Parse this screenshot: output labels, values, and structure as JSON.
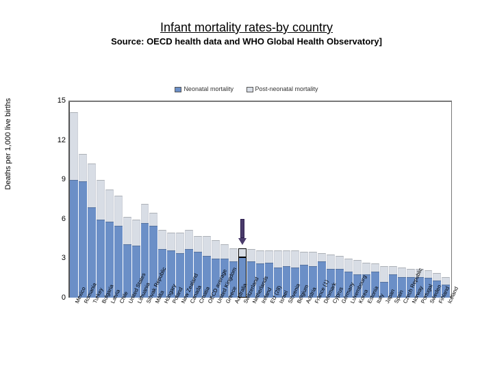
{
  "title": "Infant mortality rates-by country",
  "subtitle": "Source: OECD health data and WHO Global Health Observatory]",
  "chart": {
    "type": "stacked-bar",
    "ylabel": "Deaths per 1,000 live births",
    "ylim": [
      0,
      15
    ],
    "yticks": [
      0,
      3,
      6,
      9,
      12,
      15
    ],
    "colors": {
      "neonatal": "#6b8fc7",
      "postneonatal": "#d8dde5",
      "background": "#ffffff",
      "axis": "#555555",
      "frame": "#777777",
      "arrow": "#4a3b6b"
    },
    "legend": [
      {
        "label": "Neonatal mortality",
        "color": "#6b8fc7"
      },
      {
        "label": "Post-neonatal mortality",
        "color": "#d8dde5"
      }
    ],
    "highlighted_index": 19,
    "arrow_target_index": 19,
    "fontsize": {
      "title": 18,
      "subtitle": 13,
      "axis": 11,
      "ticks": 11,
      "xlabels": 8,
      "legend": 9
    },
    "countries": [
      {
        "name": "Mexico",
        "neonatal": 9.0,
        "postneonatal": 5.2
      },
      {
        "name": "Romania",
        "neonatal": 8.9,
        "postneonatal": 2.1
      },
      {
        "name": "Turkey",
        "neonatal": 6.9,
        "postneonatal": 3.4
      },
      {
        "name": "Bulgaria",
        "neonatal": 6.0,
        "postneonatal": 3.0
      },
      {
        "name": "Latvia",
        "neonatal": 5.8,
        "postneonatal": 2.5
      },
      {
        "name": "Chile",
        "neonatal": 5.5,
        "postneonatal": 2.3
      },
      {
        "name": "United States",
        "neonatal": 4.1,
        "postneonatal": 2.1
      },
      {
        "name": "Lithuania",
        "neonatal": 4.0,
        "postneonatal": 2.0
      },
      {
        "name": "Slovak Republic",
        "neonatal": 5.7,
        "postneonatal": 1.5
      },
      {
        "name": "Malta",
        "neonatal": 5.5,
        "postneonatal": 1.0
      },
      {
        "name": "Hungary",
        "neonatal": 3.7,
        "postneonatal": 1.5
      },
      {
        "name": "Poland",
        "neonatal": 3.6,
        "postneonatal": 1.4
      },
      {
        "name": "New Zealand",
        "neonatal": 3.4,
        "postneonatal": 1.6
      },
      {
        "name": "Canada",
        "neonatal": 3.7,
        "postneonatal": 1.5
      },
      {
        "name": "Croatia",
        "neonatal": 3.5,
        "postneonatal": 1.2
      },
      {
        "name": "OECD average",
        "neonatal": 3.2,
        "postneonatal": 1.5
      },
      {
        "name": "United Kingdom",
        "neonatal": 3.0,
        "postneonatal": 1.4
      },
      {
        "name": "Greece",
        "neonatal": 3.0,
        "postneonatal": 1.1
      },
      {
        "name": "Australia",
        "neonatal": 2.8,
        "postneonatal": 1.0
      },
      {
        "name": "Switzerland",
        "neonatal": 3.1,
        "postneonatal": 0.7
      },
      {
        "name": "Netherlands",
        "neonatal": 2.8,
        "postneonatal": 0.9
      },
      {
        "name": "Ireland",
        "neonatal": 2.6,
        "postneonatal": 1.0
      },
      {
        "name": "EU (28)",
        "neonatal": 2.7,
        "postneonatal": 0.9
      },
      {
        "name": "Israel",
        "neonatal": 2.3,
        "postneonatal": 1.3
      },
      {
        "name": "Slovenia",
        "neonatal": 2.4,
        "postneonatal": 1.2
      },
      {
        "name": "Belgium",
        "neonatal": 2.3,
        "postneonatal": 1.3
      },
      {
        "name": "Austria",
        "neonatal": 2.5,
        "postneonatal": 1.0
      },
      {
        "name": "France (1)",
        "neonatal": 2.4,
        "postneonatal": 1.1
      },
      {
        "name": "Denmark",
        "neonatal": 2.8,
        "postneonatal": 0.6
      },
      {
        "name": "Cyprus",
        "neonatal": 2.2,
        "postneonatal": 1.1
      },
      {
        "name": "Germany",
        "neonatal": 2.2,
        "postneonatal": 1.0
      },
      {
        "name": "Luxembourg",
        "neonatal": 2.0,
        "postneonatal": 1.0
      },
      {
        "name": "Korea",
        "neonatal": 1.8,
        "postneonatal": 1.1
      },
      {
        "name": "Estonia",
        "neonatal": 1.8,
        "postneonatal": 0.9
      },
      {
        "name": "Italy",
        "neonatal": 2.0,
        "postneonatal": 0.6
      },
      {
        "name": "Japan",
        "neonatal": 1.2,
        "postneonatal": 1.2
      },
      {
        "name": "Spain",
        "neonatal": 1.8,
        "postneonatal": 0.6
      },
      {
        "name": "Czech Republic",
        "neonatal": 1.6,
        "postneonatal": 0.7
      },
      {
        "name": "Norway",
        "neonatal": 1.6,
        "postneonatal": 0.6
      },
      {
        "name": "Portugal",
        "neonatal": 1.6,
        "postneonatal": 0.6
      },
      {
        "name": "Sweden",
        "neonatal": 1.5,
        "postneonatal": 0.6
      },
      {
        "name": "Finland",
        "neonatal": 1.3,
        "postneonatal": 0.6
      },
      {
        "name": "Iceland",
        "neonatal": 1.0,
        "postneonatal": 0.6
      }
    ]
  }
}
